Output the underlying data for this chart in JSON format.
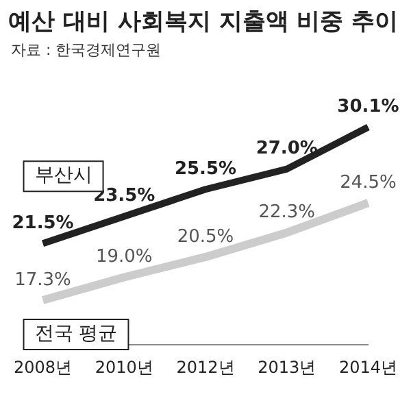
{
  "chart_data": {
    "type": "line",
    "title": "예산 대비 사회복지 지출액 비중 추이",
    "annotations": [
      "자료 : 한국경제연구원"
    ],
    "categories": [
      "2008년",
      "2010년",
      "2012년",
      "2013년",
      "2014년"
    ],
    "series": [
      {
        "name": "부산시",
        "color": "#222222",
        "values": [
          21.5,
          23.5,
          25.5,
          27.0,
          30.1
        ],
        "value_labels": [
          "21.5%",
          "23.5%",
          "25.5%",
          "27.0%",
          "30.1%"
        ]
      },
      {
        "name": "전국 평균",
        "color": "#cccccc",
        "values": [
          17.3,
          19.0,
          20.5,
          22.3,
          24.5
        ],
        "value_labels": [
          "17.3%",
          "19.0%",
          "20.5%",
          "22.3%",
          "24.5%"
        ]
      }
    ],
    "grid": false,
    "legend": false,
    "marker": "none",
    "line_style": "solid"
  }
}
